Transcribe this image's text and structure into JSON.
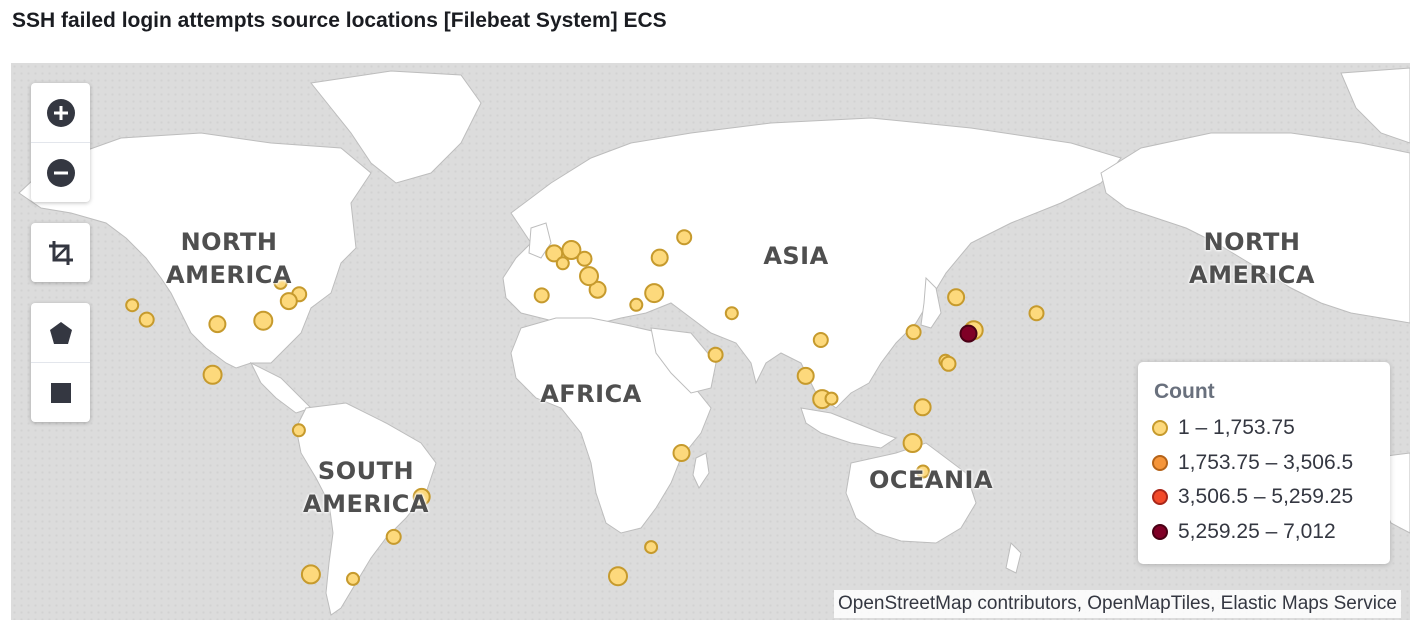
{
  "title": "SSH failed login attempts source locations [Filebeat System] ECS",
  "map": {
    "regions": [
      {
        "line1": "NORTH",
        "line2": "AMERICA"
      },
      {
        "line1": "ASIA",
        "line2": ""
      },
      {
        "line1": "AFRICA",
        "line2": ""
      },
      {
        "line1": "SOUTH",
        "line2": "AMERICA"
      },
      {
        "line1": "OCEANIA",
        "line2": ""
      },
      {
        "line1": "NORTH",
        "line2": "AMERICA"
      }
    ],
    "attribution": "OpenStreetMap contributors, OpenMapTiles, Elastic Maps Service"
  },
  "controls": [
    {
      "icon": "zoom-in-icon"
    },
    {
      "icon": "zoom-out-icon"
    },
    {
      "icon": "crop-icon"
    },
    {
      "icon": "polygon-icon"
    },
    {
      "icon": "rectangle-icon"
    }
  ],
  "legend": {
    "title": "Count",
    "items": [
      {
        "label": "1 – 1,753.75",
        "fill": "#fdd97c",
        "stroke": "#c69a2d"
      },
      {
        "label": "1,753.75 – 3,506.5",
        "fill": "#f5953a",
        "stroke": "#b56318"
      },
      {
        "label": "3,506.5 – 5,259.25",
        "fill": "#f24a2a",
        "stroke": "#a8261a"
      },
      {
        "label": "5,259.25 – 7,012",
        "fill": "#800026",
        "stroke": "#4a0015"
      }
    ]
  },
  "colors": {
    "land": "#ffffff",
    "water": "#dcdcdc",
    "low_fill": "#fdd97c",
    "low_stroke": "#c69a2d",
    "high_fill": "#800026"
  },
  "points": [
    {
      "lon": -122.4,
      "lat": 37.8,
      "band": 1
    },
    {
      "lon": -118.2,
      "lat": 34.0,
      "band": 1
    },
    {
      "lon": -97.7,
      "lat": 32.8,
      "band": 1
    },
    {
      "lon": -84.4,
      "lat": 33.7,
      "band": 1
    },
    {
      "lon": -79.4,
      "lat": 43.7,
      "band": 1
    },
    {
      "lon": -74.0,
      "lat": 40.7,
      "band": 1
    },
    {
      "lon": -77.0,
      "lat": 38.9,
      "band": 1
    },
    {
      "lon": -99.1,
      "lat": 19.4,
      "band": 1
    },
    {
      "lon": -74.1,
      "lat": 4.7,
      "band": 1
    },
    {
      "lon": -46.6,
      "lat": -23.5,
      "band": 1
    },
    {
      "lon": -38.5,
      "lat": -12.9,
      "band": 1
    },
    {
      "lon": -70.6,
      "lat": -33.4,
      "band": 1
    },
    {
      "lon": -58.4,
      "lat": -34.6,
      "band": 1
    },
    {
      "lon": -3.7,
      "lat": 40.4,
      "band": 1
    },
    {
      "lon": -0.1,
      "lat": 51.5,
      "band": 1
    },
    {
      "lon": 4.9,
      "lat": 52.4,
      "band": 1
    },
    {
      "lon": 2.4,
      "lat": 48.9,
      "band": 1
    },
    {
      "lon": 8.7,
      "lat": 50.1,
      "band": 1
    },
    {
      "lon": 12.5,
      "lat": 41.9,
      "band": 1
    },
    {
      "lon": 10.0,
      "lat": 45.5,
      "band": 1
    },
    {
      "lon": 23.7,
      "lat": 37.9,
      "band": 1
    },
    {
      "lon": 37.6,
      "lat": 55.8,
      "band": 1
    },
    {
      "lon": 30.5,
      "lat": 50.4,
      "band": 1
    },
    {
      "lon": 28.9,
      "lat": 41.0,
      "band": 1
    },
    {
      "lon": 51.4,
      "lat": 35.7,
      "band": 1
    },
    {
      "lon": 46.7,
      "lat": 24.7,
      "band": 1
    },
    {
      "lon": 36.8,
      "lat": -1.3,
      "band": 1
    },
    {
      "lon": 18.4,
      "lat": -33.9,
      "band": 1
    },
    {
      "lon": 28.0,
      "lat": -26.2,
      "band": 1
    },
    {
      "lon": 77.2,
      "lat": 28.6,
      "band": 1
    },
    {
      "lon": 72.8,
      "lat": 19.1,
      "band": 1
    },
    {
      "lon": 77.6,
      "lat": 12.97,
      "band": 1
    },
    {
      "lon": 80.3,
      "lat": 13.1,
      "band": 1
    },
    {
      "lon": 104.1,
      "lat": 30.7,
      "band": 1
    },
    {
      "lon": 116.4,
      "lat": 39.9,
      "band": 1
    },
    {
      "lon": 121.5,
      "lat": 31.2,
      "band": 1
    },
    {
      "lon": 113.3,
      "lat": 23.1,
      "band": 1
    },
    {
      "lon": 114.2,
      "lat": 22.3,
      "band": 1
    },
    {
      "lon": 106.7,
      "lat": 10.8,
      "band": 1
    },
    {
      "lon": 103.8,
      "lat": 1.35,
      "band": 1
    },
    {
      "lon": 106.8,
      "lat": -6.2,
      "band": 1
    },
    {
      "lon": 139.7,
      "lat": 35.7,
      "band": 1
    },
    {
      "lon": 120.0,
      "lat": 30.3,
      "band": 4
    }
  ]
}
